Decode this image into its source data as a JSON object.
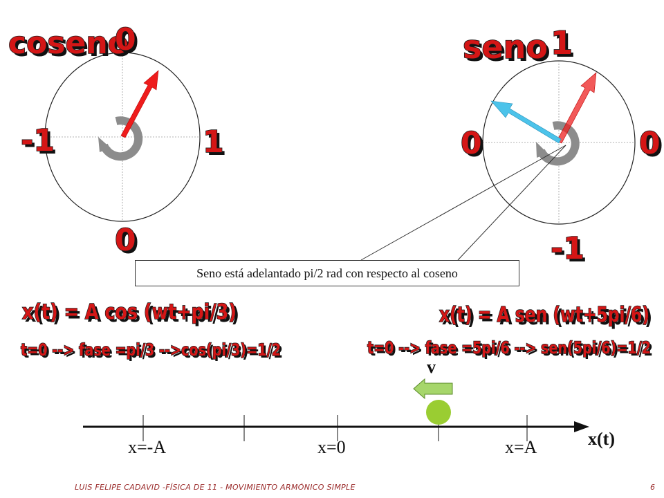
{
  "cosine_circle": {
    "title": "coseno",
    "top": "0",
    "left": "-1",
    "right": "1",
    "bottom": "0"
  },
  "sine_circle": {
    "title": "seno",
    "top": "1",
    "left": "0",
    "right": "0",
    "bottom": "-1"
  },
  "callout": {
    "text": "Seno está adelantado pi/2 rad con respecto al coseno"
  },
  "equations": {
    "cos_equation": "x(t) = A cos (wt+pi/3)",
    "cos_phase": "t=0 --> fase =pi/3 -->cos(pi/3)=1/2",
    "sin_equation": "x(t) = A sen (wt+5pi/6)",
    "sin_phase": "t=0 --> fase =5pi/6 --> sen(5pi/6)=1/2"
  },
  "axis": {
    "velocity_label": "v",
    "label_minus_a": "x=-A",
    "label_zero": "x=0",
    "label_a": "x=A",
    "axis_title": "x(t)"
  },
  "footer": {
    "text": "LUIS FELIPE CADAVID -FÍSICA DE 11 - MOVIMIENTO ARMÓNICO SIMPLE",
    "page_number": "6"
  },
  "colors": {
    "red_arrow": "#ee1c1c",
    "blue_arrow": "#4cc3ea",
    "ball": "#9acd32",
    "velocity_arrow": "#a6d66b"
  }
}
